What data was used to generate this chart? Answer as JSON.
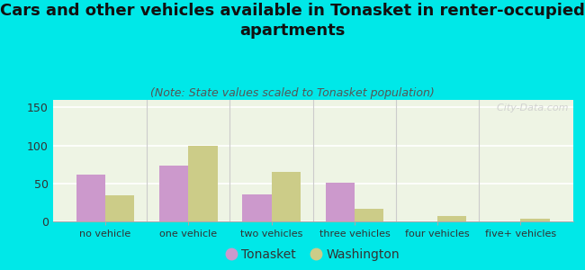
{
  "title": "Cars and other vehicles available in Tonasket in renter-occupied\napartments",
  "subtitle": "(Note: State values scaled to Tonasket population)",
  "categories": [
    "no vehicle",
    "one vehicle",
    "two vehicles",
    "three vehicles",
    "four vehicles",
    "five+ vehicles"
  ],
  "tonasket_values": [
    62,
    73,
    36,
    51,
    0,
    0
  ],
  "washington_values": [
    34,
    99,
    65,
    17,
    7,
    3
  ],
  "tonasket_color": "#cc99cc",
  "washington_color": "#cccc88",
  "background_color": "#00e8e8",
  "plot_bg": "#eef4e4",
  "ylim": [
    0,
    160
  ],
  "yticks": [
    0,
    50,
    100,
    150
  ],
  "bar_width": 0.35,
  "title_fontsize": 13,
  "subtitle_fontsize": 9,
  "legend_labels": [
    "Tonasket",
    "Washington"
  ],
  "watermark": "  City-Data.com"
}
